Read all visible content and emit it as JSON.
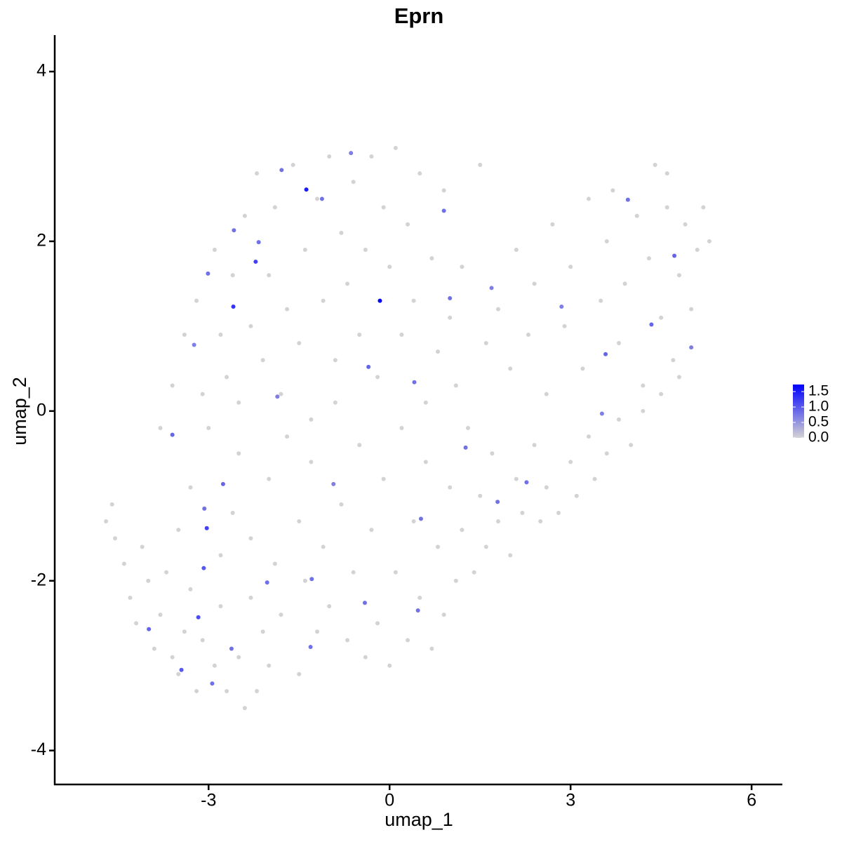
{
  "chart_data": {
    "type": "scatter",
    "title": "Eprn",
    "x_label": "umap_1",
    "y_label": "umap_2",
    "x": [
      -4.7,
      -4.6,
      -4.55,
      -4.4,
      -4.3,
      -4.2,
      -4.1,
      -4.0,
      -3.9,
      -3.8,
      -3.7,
      -3.6,
      -3.5,
      -3.5,
      -3.4,
      -3.3,
      -3.3,
      -3.2,
      -3.1,
      -3.0,
      -2.9,
      -2.8,
      -2.8,
      -2.7,
      -2.7,
      -2.6,
      -2.5,
      -2.5,
      -2.4,
      -2.3,
      -2.3,
      -2.2,
      -2.1,
      -2.0,
      -2.0,
      -1.9,
      -1.8,
      -1.7,
      -1.5,
      -1.5,
      -1.4,
      -1.3,
      -1.2,
      -1.1,
      -1.0,
      -0.9,
      -0.8,
      -0.7,
      -0.6,
      -0.5,
      -0.4,
      -0.3,
      -0.2,
      -0.1,
      0.0,
      0.1,
      0.2,
      0.3,
      0.4,
      0.5,
      0.6,
      0.7,
      0.8,
      0.9,
      1.0,
      1.1,
      1.2,
      1.3,
      1.4,
      1.5,
      1.6,
      1.7,
      1.8,
      2.0,
      2.1,
      2.2,
      2.4,
      2.5,
      2.6,
      2.8,
      3.0,
      3.1,
      3.3,
      3.4,
      3.6,
      3.8,
      4.0,
      4.2,
      4.5,
      4.8,
      -3.8,
      -3.6,
      -3.4,
      -3.2,
      -3.1,
      -2.9,
      -2.8,
      -2.6,
      -2.5,
      -2.4,
      -2.3,
      -2.2,
      -2.1,
      -2.0,
      -1.9,
      -1.8,
      -1.7,
      -1.6,
      -1.5,
      -1.4,
      -1.3,
      -1.2,
      -1.1,
      -1.0,
      -0.9,
      -0.8,
      -0.7,
      -0.6,
      -0.5,
      -0.4,
      -0.3,
      -0.2,
      -0.1,
      0.0,
      0.1,
      0.2,
      0.3,
      0.4,
      0.5,
      0.6,
      0.7,
      0.8,
      0.9,
      1.0,
      1.1,
      1.2,
      1.5,
      1.6,
      1.8,
      2.0,
      2.1,
      2.3,
      2.4,
      2.6,
      2.7,
      2.9,
      3.0,
      3.2,
      3.3,
      3.5,
      3.6,
      3.8,
      3.9,
      4.1,
      4.2,
      4.3,
      4.4,
      4.5,
      4.6,
      4.7,
      4.8,
      4.9,
      5.0,
      5.1,
      5.2,
      5.3,
      4.6,
      3.7,
      -1.79,
      -1.38,
      -2.17,
      -2.58,
      -2.22,
      -2.59,
      -0.16,
      -3.01,
      -3.24,
      -3.6,
      -3.07,
      -3.03,
      -2.76,
      -3.08,
      -3.17,
      -3.99,
      -3.45,
      -2.94,
      -0.35,
      0.9,
      1.0,
      1.69,
      2.85,
      3.58,
      4.34,
      4.72,
      3.95,
      5.0,
      3.52,
      1.26,
      1.79,
      2.27,
      0.52,
      0.41,
      -0.41,
      0.47,
      -1.31,
      -2.03,
      -2.62,
      -1.29,
      -0.93,
      -1.86,
      -1.12,
      -0.64
    ],
    "y": [
      -1.3,
      -1.1,
      -1.5,
      -1.8,
      -2.2,
      -2.5,
      -1.6,
      -2.0,
      -2.8,
      -2.4,
      -1.9,
      -2.9,
      -3.1,
      -1.4,
      -2.6,
      -2.1,
      -0.9,
      -3.3,
      -2.7,
      -0.2,
      -3.0,
      -1.7,
      -2.3,
      0.4,
      -3.3,
      -1.2,
      -2.9,
      -0.5,
      -3.5,
      -2.2,
      -1.5,
      -3.3,
      -2.6,
      -0.8,
      -3.0,
      -1.8,
      -2.4,
      -0.3,
      -3.1,
      -1.3,
      -2.0,
      -0.6,
      -2.6,
      -1.6,
      -2.3,
      0.1,
      -1.1,
      -2.7,
      -1.9,
      -0.4,
      -2.9,
      -1.4,
      -2.5,
      -0.8,
      -3.0,
      -1.9,
      -0.2,
      -2.7,
      -1.3,
      -2.2,
      -0.6,
      -2.8,
      -1.6,
      -2.4,
      -0.9,
      -2.0,
      -1.4,
      -0.2,
      -1.9,
      -1.0,
      -1.6,
      -0.5,
      -1.3,
      -1.7,
      -0.8,
      -1.2,
      -0.4,
      -1.3,
      -0.9,
      -1.2,
      -0.6,
      -1.0,
      -0.3,
      -0.8,
      -0.5,
      -0.1,
      -0.4,
      0.0,
      0.2,
      0.4,
      -0.2,
      0.3,
      0.9,
      1.3,
      0.2,
      1.9,
      0.9,
      1.6,
      0.1,
      2.3,
      1.0,
      2.8,
      0.6,
      1.6,
      2.4,
      0.2,
      1.2,
      2.9,
      0.8,
      1.9,
      -0.1,
      2.5,
      1.3,
      3.0,
      0.6,
      2.1,
      1.5,
      2.7,
      0.9,
      1.9,
      3.0,
      0.4,
      2.4,
      1.7,
      3.1,
      0.9,
      2.2,
      1.3,
      2.8,
      0.1,
      1.8,
      0.7,
      2.6,
      1.1,
      0.3,
      1.7,
      2.9,
      0.8,
      1.2,
      0.5,
      1.9,
      0.9,
      1.5,
      0.2,
      2.2,
      1.0,
      1.7,
      0.5,
      2.5,
      1.3,
      2.0,
      0.8,
      1.5,
      2.3,
      0.3,
      1.8,
      2.9,
      1.1,
      2.4,
      0.6,
      1.6,
      2.2,
      1.2,
      1.9,
      2.4,
      2.0,
      2.8,
      2.6,
      2.84,
      2.61,
      1.99,
      2.13,
      1.76,
      1.23,
      1.3,
      1.62,
      0.78,
      -0.28,
      -1.15,
      -1.38,
      -0.86,
      -1.85,
      -2.43,
      -2.57,
      -3.05,
      -3.21,
      0.52,
      2.36,
      1.33,
      1.45,
      1.23,
      0.67,
      1.02,
      1.83,
      2.49,
      0.75,
      -0.03,
      -0.43,
      -1.07,
      -0.84,
      -1.27,
      0.34,
      -2.26,
      -2.35,
      -2.78,
      -2.02,
      -2.8,
      -1.98,
      -0.86,
      0.17,
      2.5,
      3.04
    ],
    "values": [
      0,
      0,
      0,
      0,
      0,
      0,
      0,
      0,
      0,
      0,
      0,
      0,
      0,
      0,
      0,
      0,
      0,
      0,
      0,
      0,
      0,
      0,
      0,
      0,
      0,
      0,
      0,
      0,
      0,
      0,
      0,
      0,
      0,
      0,
      0,
      0,
      0,
      0,
      0,
      0,
      0,
      0,
      0,
      0,
      0,
      0,
      0,
      0,
      0,
      0,
      0,
      0,
      0,
      0,
      0,
      0,
      0,
      0,
      0,
      0,
      0,
      0,
      0,
      0,
      0,
      0,
      0,
      0,
      0,
      0,
      0,
      0,
      0,
      0,
      0,
      0,
      0,
      0,
      0,
      0,
      0,
      0,
      0,
      0,
      0,
      0,
      0,
      0,
      0,
      0,
      0,
      0,
      0,
      0,
      0,
      0,
      0,
      0,
      0,
      0,
      0,
      0,
      0,
      0,
      0,
      0,
      0,
      0,
      0,
      0,
      0,
      0,
      0,
      0,
      0,
      0,
      0,
      0,
      0,
      0,
      0,
      0,
      0,
      0,
      0,
      0,
      0,
      0,
      0,
      0,
      0,
      0,
      0,
      0,
      0,
      0,
      0,
      0,
      0,
      0,
      0,
      0,
      0,
      0,
      0,
      0,
      0,
      0,
      0,
      0,
      0,
      0,
      0,
      0,
      0,
      0,
      0,
      0,
      0,
      0,
      0,
      0,
      0,
      0,
      0,
      0,
      0,
      0,
      0.8,
      1.5,
      0.8,
      0.8,
      1.2,
      1.3,
      1.72,
      0.8,
      0.7,
      0.9,
      0.8,
      1.2,
      0.9,
      1.0,
      1.1,
      0.9,
      1.0,
      0.8,
      0.9,
      0.8,
      0.8,
      0.7,
      0.7,
      0.9,
      0.9,
      0.9,
      0.8,
      0.7,
      0.7,
      0.8,
      0.8,
      0.8,
      0.8,
      0.8,
      0.8,
      0.8,
      0.8,
      0.8,
      0.8,
      0.8,
      0.7,
      0.7,
      0.8,
      0.7
    ],
    "xlim": [
      -5.55,
      6.51
    ],
    "ylim": [
      -4.4,
      4.43
    ],
    "xticks": [
      -3,
      0,
      3,
      6
    ],
    "yticks": [
      -4,
      -2,
      0,
      2,
      4
    ],
    "colorbar": {
      "colors": [
        "#d3d3d3",
        "#0000ff"
      ],
      "lim": [
        0,
        1.73
      ],
      "ticks": [
        {
          "value": 0,
          "label": "0.0"
        },
        {
          "value": 0.5,
          "label": "0.5"
        },
        {
          "value": 1,
          "label": "1.0"
        },
        {
          "value": 1.5,
          "label": "1.5"
        }
      ]
    }
  }
}
